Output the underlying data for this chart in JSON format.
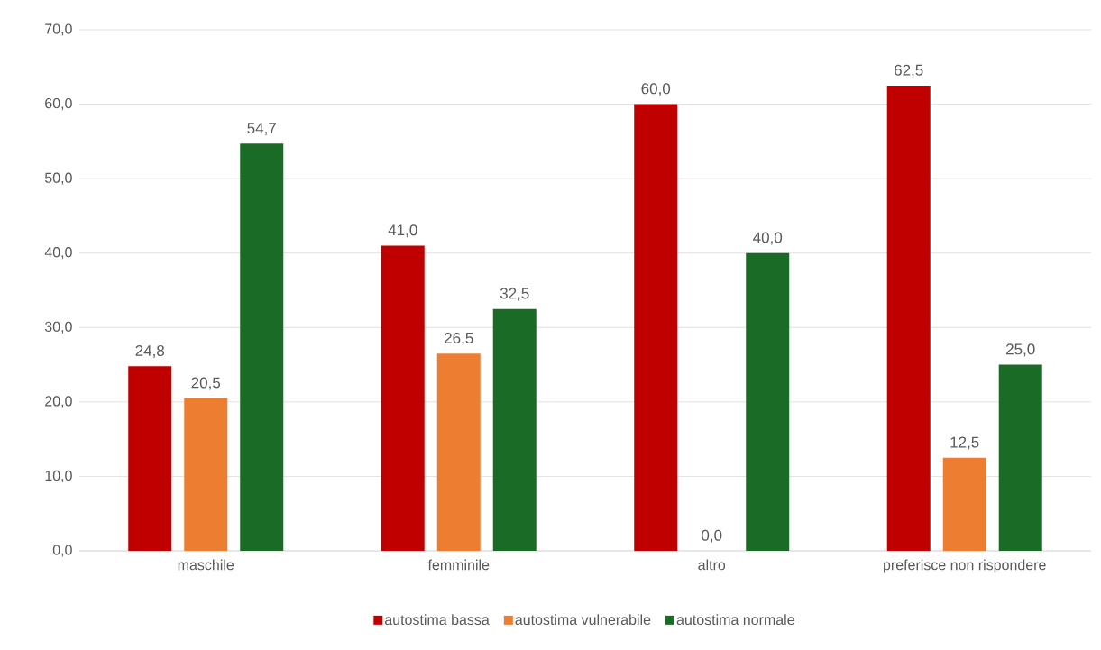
{
  "chart_data": {
    "type": "bar",
    "categories": [
      "maschile",
      "femminile",
      "altro",
      "preferisce non rispondere"
    ],
    "series": [
      {
        "name": "autostima bassa",
        "color": "#c00000",
        "values": [
          24.8,
          41.0,
          60.0,
          62.5
        ],
        "value_labels": [
          "24,8",
          "41,0",
          "60,0",
          "62,5"
        ]
      },
      {
        "name": "autostima vulnerabile",
        "color": "#ed7d31",
        "values": [
          20.5,
          26.5,
          0.0,
          12.5
        ],
        "value_labels": [
          "20,5",
          "26,5",
          "0,0",
          "12,5"
        ]
      },
      {
        "name": "autostima normale",
        "color": "#1a6b26",
        "values": [
          54.7,
          32.5,
          40.0,
          25.0
        ],
        "value_labels": [
          "54,7",
          "32,5",
          "40,0",
          "25,0"
        ]
      }
    ],
    "ylim": [
      0,
      70
    ],
    "yticks": [
      {
        "value": 0,
        "label": "0,0"
      },
      {
        "value": 10,
        "label": "10,0"
      },
      {
        "value": 20,
        "label": "20,0"
      },
      {
        "value": 30,
        "label": "30,0"
      },
      {
        "value": 40,
        "label": "40,0"
      },
      {
        "value": 50,
        "label": "50,0"
      },
      {
        "value": 60,
        "label": "60,0"
      },
      {
        "value": 70,
        "label": "70,0"
      }
    ],
    "grid": "y",
    "legend": "bottom"
  }
}
